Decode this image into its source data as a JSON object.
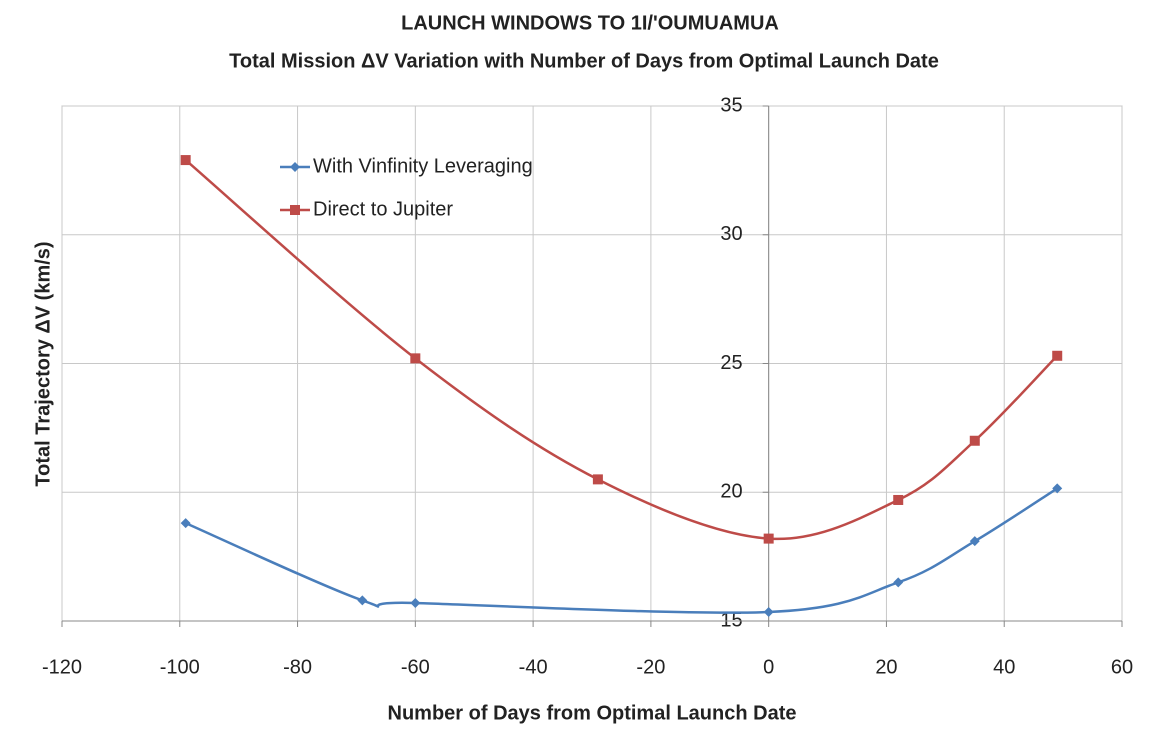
{
  "chart_data": {
    "type": "line",
    "title": "LAUNCH WINDOWS TO 1I/'OUMUAMUA",
    "subtitle": "Total Mission ΔV Variation with Number of Days from Optimal Launch Date",
    "x_label": "Number of Days from Optimal Launch Date",
    "y_label": "Total Trajectory ΔV (km/s)",
    "series": [
      {
        "name": "With Vinfinity Leveraging",
        "color": "#4a7ebb",
        "marker": "diamond",
        "x": [
          -99,
          -69,
          -60,
          0,
          22,
          35,
          49
        ],
        "values": [
          18.8,
          15.8,
          15.7,
          15.35,
          16.5,
          18.1,
          20.15
        ]
      },
      {
        "name": "Direct to Jupiter",
        "color": "#be4b48",
        "marker": "square",
        "x": [
          -99,
          -60,
          -29,
          0,
          22,
          35,
          49
        ],
        "values": [
          32.9,
          25.2,
          20.5,
          18.2,
          19.7,
          22.0,
          25.3
        ]
      }
    ],
    "xlim": [
      -120,
      60
    ],
    "xticks": [
      -120,
      -100,
      -80,
      -60,
      -40,
      -20,
      0,
      20,
      40,
      60
    ],
    "ylim": [
      15,
      35
    ],
    "yticks": [
      15,
      20,
      25,
      30,
      35
    ],
    "grid": true,
    "legend": "top-left"
  }
}
